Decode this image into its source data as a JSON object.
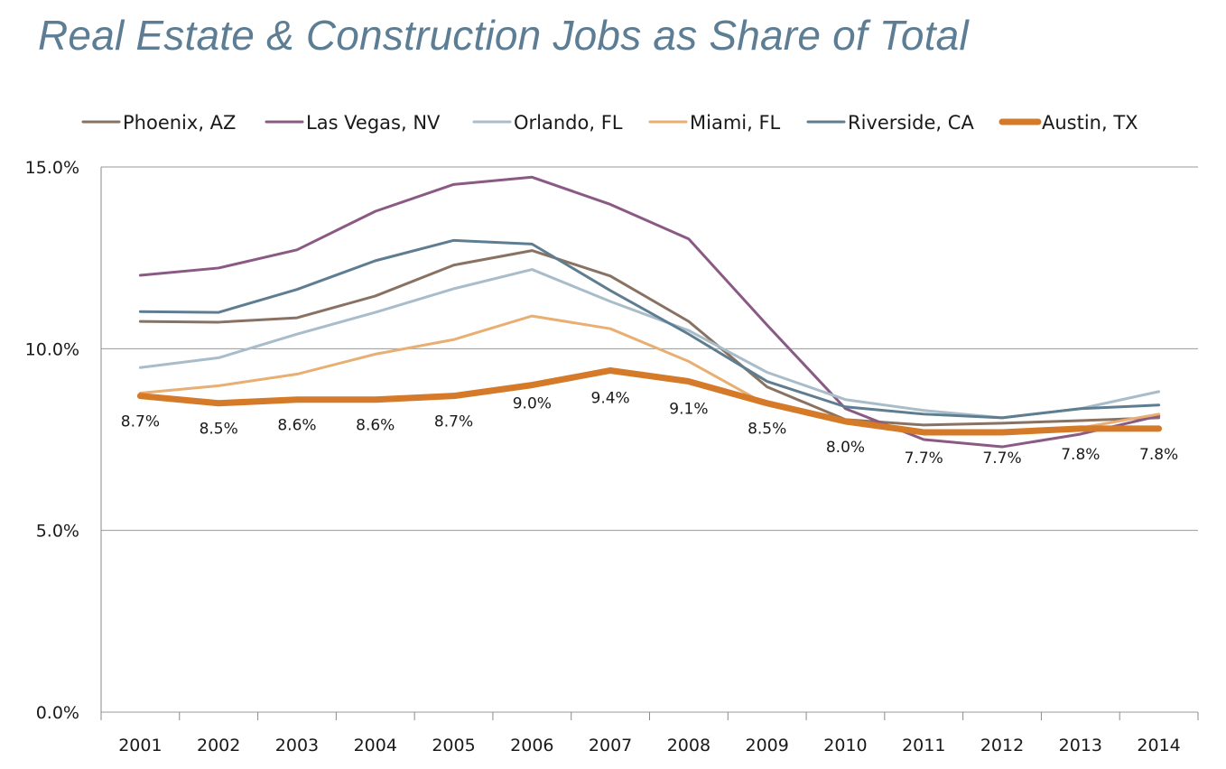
{
  "title": "Real Estate & Construction Jobs as Share of Total",
  "chart_data": {
    "type": "line",
    "title": "Real Estate & Construction Jobs as Share of Total",
    "xlabel": "",
    "ylabel": "",
    "x": [
      "2001",
      "2002",
      "2003",
      "2004",
      "2005",
      "2006",
      "2007",
      "2008",
      "2009",
      "2010",
      "2011",
      "2012",
      "2013",
      "2014"
    ],
    "ylim": [
      0,
      15
    ],
    "yticks": [
      0,
      5,
      10,
      15
    ],
    "ytick_labels": [
      "0.0%",
      "5.0%",
      "10.0%",
      "15.0%"
    ],
    "grid": true,
    "legend": "top",
    "series": [
      {
        "name": "Phoenix, AZ",
        "color": "#8a7262",
        "values": [
          10.75,
          10.73,
          10.85,
          11.45,
          12.3,
          12.7,
          12.0,
          10.75,
          8.95,
          8.05,
          7.9,
          7.95,
          8.02,
          8.1
        ]
      },
      {
        "name": "Las Vegas, NV",
        "color": "#8a5a85",
        "values": [
          12.02,
          12.22,
          12.72,
          13.78,
          14.52,
          14.72,
          13.97,
          13.02,
          10.65,
          8.35,
          7.5,
          7.3,
          7.65,
          8.15
        ]
      },
      {
        "name": "Orlando, FL",
        "color": "#a9bcca",
        "values": [
          9.48,
          9.75,
          10.4,
          11.0,
          11.65,
          12.18,
          11.3,
          10.5,
          9.35,
          8.6,
          8.3,
          8.1,
          8.35,
          8.82
        ]
      },
      {
        "name": "Miami, FL",
        "color": "#e8ae72",
        "values": [
          8.78,
          8.98,
          9.3,
          9.85,
          10.25,
          10.9,
          10.55,
          9.65,
          8.45,
          7.95,
          7.7,
          7.72,
          7.82,
          8.2
        ]
      },
      {
        "name": "Riverside, CA",
        "color": "#5e7d90",
        "values": [
          11.02,
          11.0,
          11.63,
          12.42,
          12.98,
          12.88,
          11.6,
          10.4,
          9.1,
          8.4,
          8.2,
          8.1,
          8.35,
          8.45
        ]
      },
      {
        "name": "Austin, TX",
        "color": "#d47a28",
        "values": [
          8.7,
          8.5,
          8.6,
          8.6,
          8.7,
          9.0,
          9.4,
          9.1,
          8.5,
          8.0,
          7.7,
          7.7,
          7.8,
          7.8
        ],
        "data_labels": [
          "8.7%",
          "8.5%",
          "8.6%",
          "8.6%",
          "8.7%",
          "9.0%",
          "9.4%",
          "9.1%",
          "8.5%",
          "8.0%",
          "7.7%",
          "7.7%",
          "7.8%",
          "7.8%"
        ]
      }
    ]
  }
}
